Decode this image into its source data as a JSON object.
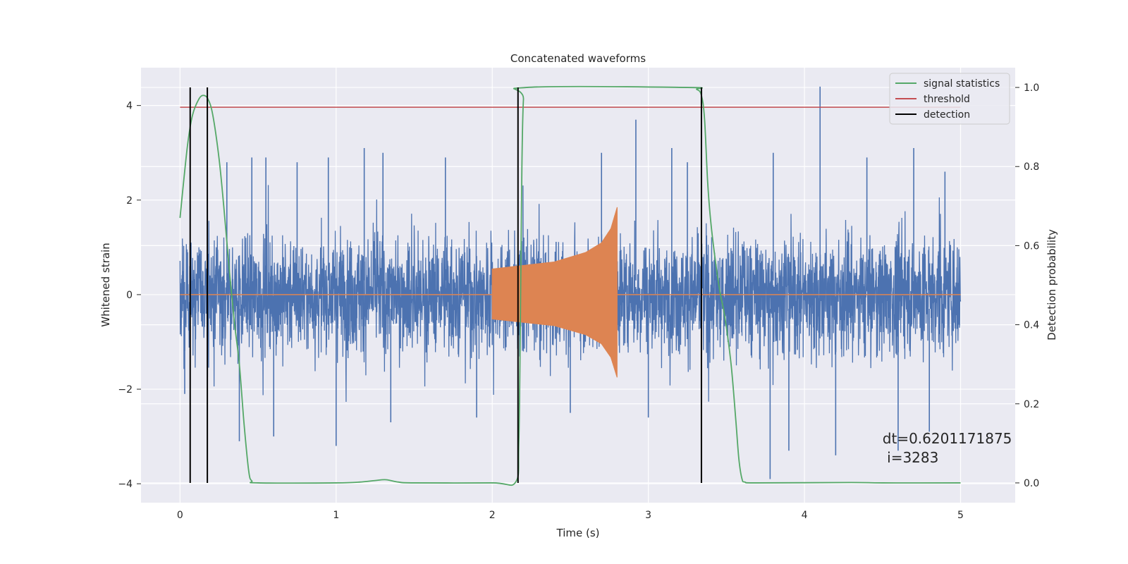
{
  "chart_data": {
    "type": "line",
    "title": "Concatenated waveforms",
    "xlabel": "Time (s)",
    "ylabel": "Whitened strain",
    "y2label": "Detection probability",
    "xlim": [
      -0.25,
      5.35
    ],
    "ylim": [
      -4.4,
      4.8
    ],
    "y2lim": [
      -0.05,
      1.05
    ],
    "x_ticks": [
      0,
      1,
      2,
      3,
      4,
      5
    ],
    "y_ticks": [
      -4,
      -2,
      0,
      2,
      4
    ],
    "y2_ticks": [
      0.0,
      0.2,
      0.4,
      0.6,
      0.8,
      1.0
    ],
    "grid": true,
    "legend_position": "top-right",
    "colors": {
      "strain": "#4c72b0",
      "injection": "#dd8452",
      "signal_statistics": "#55a868",
      "threshold": "#c44e52",
      "detection": "#000000",
      "plot_background": "#eaeaf2",
      "grid": "#ffffff"
    },
    "series": [
      {
        "name": "",
        "axis": "left",
        "kind": "noise",
        "x_range": [
          0,
          5
        ],
        "amplitude_typical": 1.0,
        "peaks": [
          {
            "x": 0.3,
            "y": 2.8
          },
          {
            "x": 0.46,
            "y": 2.9
          },
          {
            "x": 0.55,
            "y": 2.9
          },
          {
            "x": 0.75,
            "y": 2.8
          },
          {
            "x": 0.95,
            "y": 2.9
          },
          {
            "x": 1.18,
            "y": 3.1
          },
          {
            "x": 1.3,
            "y": 3.0
          },
          {
            "x": 1.7,
            "y": 2.9
          },
          {
            "x": 2.7,
            "y": 3.0
          },
          {
            "x": 2.92,
            "y": 3.7
          },
          {
            "x": 3.15,
            "y": 3.1
          },
          {
            "x": 3.25,
            "y": 2.8
          },
          {
            "x": 3.8,
            "y": 3.0
          },
          {
            "x": 4.1,
            "y": 4.4
          },
          {
            "x": 4.4,
            "y": 2.9
          },
          {
            "x": 4.7,
            "y": 3.1
          },
          {
            "x": 4.9,
            "y": 2.6
          }
        ],
        "troughs": [
          {
            "x": 0.03,
            "y": -2.1
          },
          {
            "x": 0.38,
            "y": -3.1
          },
          {
            "x": 0.6,
            "y": -3.0
          },
          {
            "x": 1.0,
            "y": -3.2
          },
          {
            "x": 1.35,
            "y": -2.7
          },
          {
            "x": 1.9,
            "y": -2.6
          },
          {
            "x": 2.5,
            "y": -2.5
          },
          {
            "x": 3.0,
            "y": -2.6
          },
          {
            "x": 3.78,
            "y": -3.9
          },
          {
            "x": 3.9,
            "y": -3.3
          },
          {
            "x": 4.2,
            "y": -3.4
          },
          {
            "x": 4.6,
            "y": -3.3
          },
          {
            "x": 4.8,
            "y": -2.9
          }
        ]
      },
      {
        "name": "",
        "axis": "left",
        "kind": "chirp",
        "x_range": [
          2.0,
          2.8
        ],
        "envelope": [
          {
            "x": 2.0,
            "y": 0.55
          },
          {
            "x": 2.4,
            "y": 0.7
          },
          {
            "x": 2.6,
            "y": 0.9
          },
          {
            "x": 2.7,
            "y": 1.1
          },
          {
            "x": 2.76,
            "y": 1.4
          },
          {
            "x": 2.8,
            "y": 1.85
          }
        ],
        "baseline": 0
      },
      {
        "name": "signal statistics",
        "axis": "right",
        "points": [
          [
            0.0,
            0.67
          ],
          [
            0.02,
            0.75
          ],
          [
            0.05,
            0.86
          ],
          [
            0.08,
            0.93
          ],
          [
            0.12,
            0.97
          ],
          [
            0.15,
            0.98
          ],
          [
            0.18,
            0.97
          ],
          [
            0.21,
            0.93
          ],
          [
            0.25,
            0.82
          ],
          [
            0.28,
            0.7
          ],
          [
            0.32,
            0.52
          ],
          [
            0.35,
            0.4
          ],
          [
            0.38,
            0.3
          ],
          [
            0.41,
            0.15
          ],
          [
            0.44,
            0.03
          ],
          [
            0.46,
            0.005
          ],
          [
            0.5,
            0.0
          ],
          [
            1.0,
            0.0
          ],
          [
            1.15,
            0.002
          ],
          [
            1.25,
            0.006
          ],
          [
            1.32,
            0.008
          ],
          [
            1.4,
            0.002
          ],
          [
            1.5,
            0.0
          ],
          [
            2.0,
            0.0
          ],
          [
            2.15,
            0.002
          ],
          [
            2.17,
            0.1
          ],
          [
            2.18,
            0.4
          ],
          [
            2.19,
            0.8
          ],
          [
            2.2,
            0.97
          ],
          [
            2.22,
            1.0
          ],
          [
            3.25,
            1.0
          ],
          [
            3.31,
            0.995
          ],
          [
            3.34,
            0.98
          ],
          [
            3.36,
            0.92
          ],
          [
            3.38,
            0.76
          ],
          [
            3.4,
            0.66
          ],
          [
            3.43,
            0.56
          ],
          [
            3.46,
            0.48
          ],
          [
            3.49,
            0.42
          ],
          [
            3.53,
            0.3
          ],
          [
            3.56,
            0.16
          ],
          [
            3.58,
            0.06
          ],
          [
            3.6,
            0.01
          ],
          [
            3.62,
            0.002
          ],
          [
            3.7,
            0.0
          ],
          [
            4.3,
            0.001
          ],
          [
            4.5,
            0.0
          ],
          [
            5.0,
            0.0
          ]
        ]
      },
      {
        "name": "threshold",
        "axis": "right",
        "points": [
          [
            0.0,
            0.95
          ],
          [
            5.0,
            0.95
          ]
        ]
      },
      {
        "name": "detection",
        "axis": "right",
        "vertical_lines_x": [
          0.065,
          0.175,
          2.165,
          3.34
        ],
        "span": [
          0.0,
          1.0
        ]
      }
    ],
    "annotations": [
      {
        "text": "dt=0.6201171875\n i=3283",
        "x": 4.5,
        "y": 0.1,
        "axis": "right"
      }
    ]
  }
}
